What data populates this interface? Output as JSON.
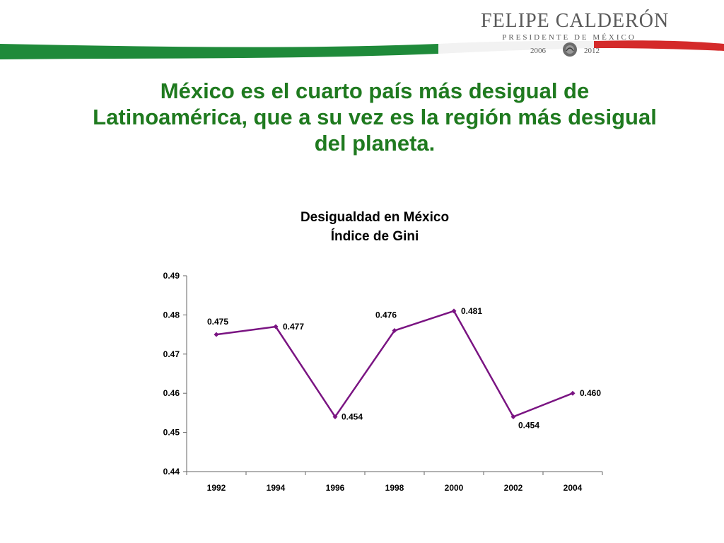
{
  "header": {
    "brand_name": "FELIPE CALDERÓN",
    "brand_role": "PRESIDENTE DE MÉXICO",
    "year_start": "2006",
    "year_end": "2012",
    "colors": {
      "green": "#1f8a3a",
      "white": "#ffffff",
      "red": "#d42a2a"
    }
  },
  "slide": {
    "title_lines": [
      "México es el cuarto país más desigual de",
      "Latinoamérica, que a su vez es la región más desigual",
      "del planeta."
    ],
    "title_color": "#1f7a1f"
  },
  "chart_data": {
    "type": "line",
    "title": "Desigualdad en México",
    "subtitle": "Índice de Gini",
    "categories": [
      "1992",
      "1994",
      "1996",
      "1998",
      "2000",
      "2002",
      "2004"
    ],
    "series": [
      {
        "values": [
          0.475,
          0.477,
          0.454,
          0.476,
          0.481,
          0.454,
          0.46
        ],
        "labels": [
          "0.475",
          "0.477",
          "0.454",
          "0.476",
          "0.481",
          "0.454",
          "0.460"
        ],
        "color": "#7a1482"
      }
    ],
    "ylim": [
      0.44,
      0.49
    ],
    "yticks": [
      "0.44",
      "0.45",
      "0.46",
      "0.47",
      "0.48",
      "0.49"
    ],
    "xlabel": "",
    "ylabel": "",
    "grid": false,
    "legend": "none"
  }
}
